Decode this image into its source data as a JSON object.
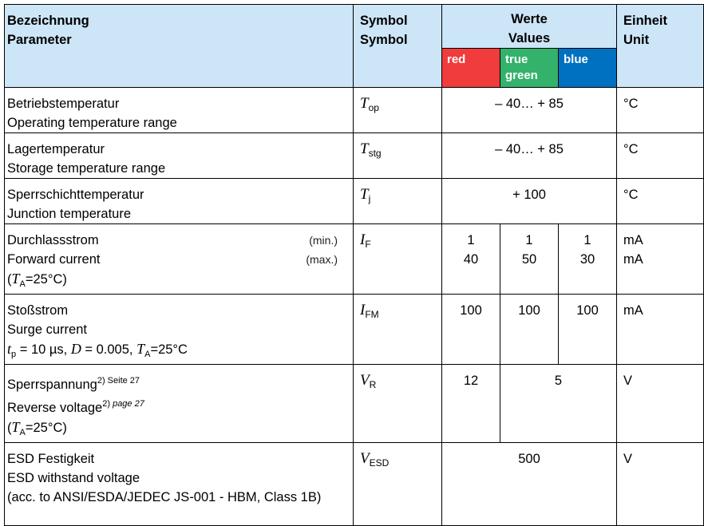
{
  "header": {
    "param_de": "Bezeichnung",
    "param_en": "Parameter",
    "symbol_de": "Symbol",
    "symbol_en": "Symbol",
    "values_de": "Werte",
    "values_en": "Values",
    "unit_de": "Einheit",
    "unit_en": "Unit",
    "colors": [
      {
        "label": "red",
        "color": "#f03c3c"
      },
      {
        "label": "true green",
        "color": "#33b26b"
      },
      {
        "label": "blue",
        "color": "#0070c0"
      }
    ]
  },
  "rows": {
    "top": {
      "de": "Betriebstemperatur",
      "en": "Operating temperature range",
      "sym": "T",
      "sub": "op",
      "value": "– 40… + 85",
      "unit": "°C"
    },
    "stg": {
      "de": "Lagertemperatur",
      "en": "Storage temperature range",
      "sym": "T",
      "sub": "stg",
      "value": "– 40… + 85",
      "unit": "°C"
    },
    "tj": {
      "de": "Sperrschichttemperatur",
      "en": "Junction temperature",
      "sym": "T",
      "sub": "j",
      "value": "+ 100",
      "unit": "°C"
    },
    "if": {
      "de": "Durchlassstrom",
      "en": "Forward current",
      "cond_t": "T",
      "cond_sub": "A",
      "cond_rest": "=25°C",
      "min_label": "(min.)",
      "max_label": "(max.)",
      "sym": "I",
      "sub": "F",
      "min_values": [
        "1",
        "1",
        "1"
      ],
      "max_values": [
        "40",
        "50",
        "30"
      ],
      "unit_min": "mA",
      "unit_max": "mA"
    },
    "ifm": {
      "de": "Stoßstrom",
      "en": "Surge current",
      "cond_tp": "t",
      "cond_tp_sub": "p",
      "cond_tp_rest": " = 10 µs, ",
      "cond_d": "D",
      "cond_d_rest": " = 0.005, ",
      "cond_ta": "T",
      "cond_ta_sub": "A",
      "cond_ta_rest": "=25°C",
      "sym": "I",
      "sub": "FM",
      "values": [
        "100",
        "100",
        "100"
      ],
      "unit": "mA"
    },
    "vr": {
      "de": "Sperrspannung",
      "de_note": "2) Seite 27",
      "en": "Reverse voltage",
      "en_note_num": "2)",
      "en_note_page": " page 27",
      "cond_t": "T",
      "cond_sub": "A",
      "cond_rest": "=25°C",
      "sym": "V",
      "sub": "R",
      "value_red": "12",
      "value_greenblue": "5",
      "unit": "V"
    },
    "esd": {
      "de": "ESD Festigkeit",
      "en": "ESD withstand voltage",
      "note": "(acc. to ANSI/ESDA/JEDEC JS-001 - HBM, Class 1B)",
      "sym": "V",
      "sub": "ESD",
      "value": "500",
      "unit": "V"
    }
  }
}
